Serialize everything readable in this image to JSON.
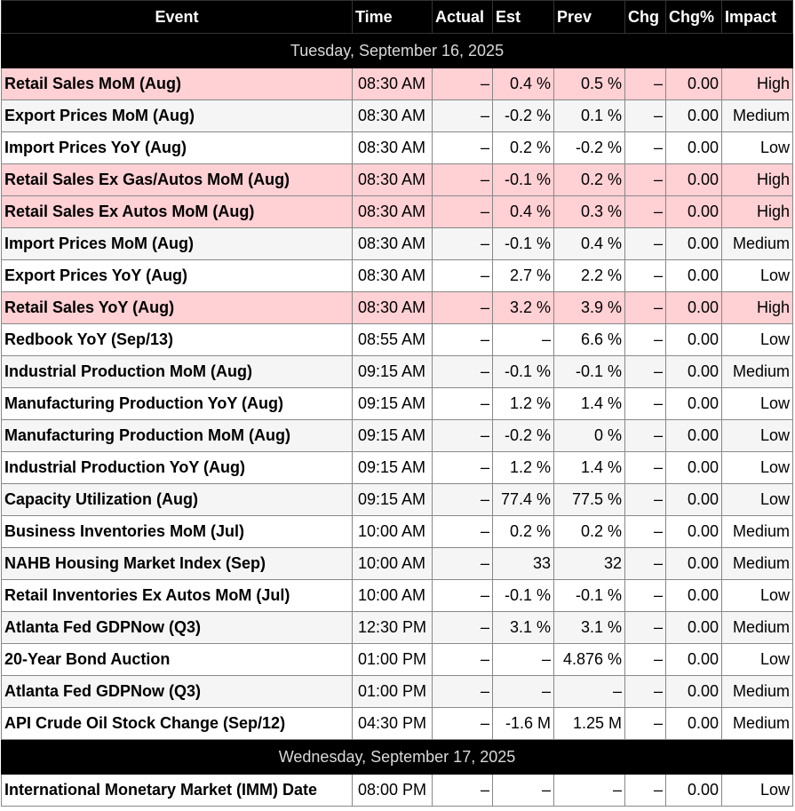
{
  "colors": {
    "header_bg": "#000000",
    "high_impact_bg": "#ffd0d4"
  },
  "headers": {
    "event": "Event",
    "time": "Time",
    "actual": "Actual",
    "est": "Est",
    "prev": "Prev",
    "chg": "Chg",
    "chg_pct": "Chg%",
    "impact": "Impact"
  },
  "day1": {
    "date": "Tuesday, September 16, 2025",
    "rows": [
      {
        "event": "Retail Sales MoM (Aug)",
        "time": "08:30 AM",
        "actual": "–",
        "est": "0.4 %",
        "prev": "0.5 %",
        "chg": "–",
        "chg_pct": "0.00",
        "impact": "High"
      },
      {
        "event": "Export Prices MoM (Aug)",
        "time": "08:30 AM",
        "actual": "–",
        "est": "-0.2 %",
        "prev": "0.1 %",
        "chg": "–",
        "chg_pct": "0.00",
        "impact": "Medium"
      },
      {
        "event": "Import Prices YoY (Aug)",
        "time": "08:30 AM",
        "actual": "–",
        "est": "0.2 %",
        "prev": "-0.2 %",
        "chg": "–",
        "chg_pct": "0.00",
        "impact": "Low"
      },
      {
        "event": "Retail Sales Ex Gas/Autos MoM (Aug)",
        "time": "08:30 AM",
        "actual": "–",
        "est": "-0.1 %",
        "prev": "0.2 %",
        "chg": "–",
        "chg_pct": "0.00",
        "impact": "High"
      },
      {
        "event": "Retail Sales Ex Autos MoM (Aug)",
        "time": "08:30 AM",
        "actual": "–",
        "est": "0.4 %",
        "prev": "0.3 %",
        "chg": "–",
        "chg_pct": "0.00",
        "impact": "High"
      },
      {
        "event": "Import Prices MoM (Aug)",
        "time": "08:30 AM",
        "actual": "–",
        "est": "-0.1 %",
        "prev": "0.4 %",
        "chg": "–",
        "chg_pct": "0.00",
        "impact": "Medium"
      },
      {
        "event": "Export Prices YoY (Aug)",
        "time": "08:30 AM",
        "actual": "–",
        "est": "2.7 %",
        "prev": "2.2 %",
        "chg": "–",
        "chg_pct": "0.00",
        "impact": "Low"
      },
      {
        "event": "Retail Sales YoY (Aug)",
        "time": "08:30 AM",
        "actual": "–",
        "est": "3.2 %",
        "prev": "3.9 %",
        "chg": "–",
        "chg_pct": "0.00",
        "impact": "High"
      },
      {
        "event": "Redbook YoY (Sep/13)",
        "time": "08:55 AM",
        "actual": "–",
        "est": "–",
        "prev": "6.6 %",
        "chg": "–",
        "chg_pct": "0.00",
        "impact": "Low"
      },
      {
        "event": "Industrial Production MoM (Aug)",
        "time": "09:15 AM",
        "actual": "–",
        "est": "-0.1 %",
        "prev": "-0.1 %",
        "chg": "–",
        "chg_pct": "0.00",
        "impact": "Medium"
      },
      {
        "event": "Manufacturing Production YoY (Aug)",
        "time": "09:15 AM",
        "actual": "–",
        "est": "1.2 %",
        "prev": "1.4 %",
        "chg": "–",
        "chg_pct": "0.00",
        "impact": "Low"
      },
      {
        "event": "Manufacturing Production MoM (Aug)",
        "time": "09:15 AM",
        "actual": "–",
        "est": "-0.2 %",
        "prev": "0 %",
        "chg": "–",
        "chg_pct": "0.00",
        "impact": "Low"
      },
      {
        "event": "Industrial Production YoY (Aug)",
        "time": "09:15 AM",
        "actual": "–",
        "est": "1.2 %",
        "prev": "1.4 %",
        "chg": "–",
        "chg_pct": "0.00",
        "impact": "Low"
      },
      {
        "event": "Capacity Utilization (Aug)",
        "time": "09:15 AM",
        "actual": "–",
        "est": "77.4 %",
        "prev": "77.5 %",
        "chg": "–",
        "chg_pct": "0.00",
        "impact": "Low"
      },
      {
        "event": "Business Inventories MoM (Jul)",
        "time": "10:00 AM",
        "actual": "–",
        "est": "0.2 %",
        "prev": "0.2 %",
        "chg": "–",
        "chg_pct": "0.00",
        "impact": "Medium"
      },
      {
        "event": "NAHB Housing Market Index (Sep)",
        "time": "10:00 AM",
        "actual": "–",
        "est": "33",
        "prev": "32",
        "chg": "–",
        "chg_pct": "0.00",
        "impact": "Medium"
      },
      {
        "event": "Retail Inventories Ex Autos MoM (Jul)",
        "time": "10:00 AM",
        "actual": "–",
        "est": "-0.1 %",
        "prev": "-0.1 %",
        "chg": "–",
        "chg_pct": "0.00",
        "impact": "Low"
      },
      {
        "event": "Atlanta Fed GDPNow (Q3)",
        "time": "12:30 PM",
        "actual": "–",
        "est": "3.1 %",
        "prev": "3.1 %",
        "chg": "–",
        "chg_pct": "0.00",
        "impact": "Medium"
      },
      {
        "event": "20-Year Bond Auction",
        "time": "01:00 PM",
        "actual": "–",
        "est": "–",
        "prev": "4.876 %",
        "chg": "–",
        "chg_pct": "0.00",
        "impact": "Low"
      },
      {
        "event": "Atlanta Fed GDPNow (Q3)",
        "time": "01:00 PM",
        "actual": "–",
        "est": "–",
        "prev": "–",
        "chg": "–",
        "chg_pct": "0.00",
        "impact": "Medium"
      },
      {
        "event": "API Crude Oil Stock Change (Sep/12)",
        "time": "04:30 PM",
        "actual": "–",
        "est": "-1.6 M",
        "prev": "1.25 M",
        "chg": "–",
        "chg_pct": "0.00",
        "impact": "Medium"
      }
    ]
  },
  "day2": {
    "date": "Wednesday, September 17, 2025",
    "rows": [
      {
        "event": "International Monetary Market (IMM) Date",
        "time": "08:00 PM",
        "actual": "–",
        "est": "–",
        "prev": "–",
        "chg": "–",
        "chg_pct": "0.00",
        "impact": "Low"
      }
    ]
  }
}
